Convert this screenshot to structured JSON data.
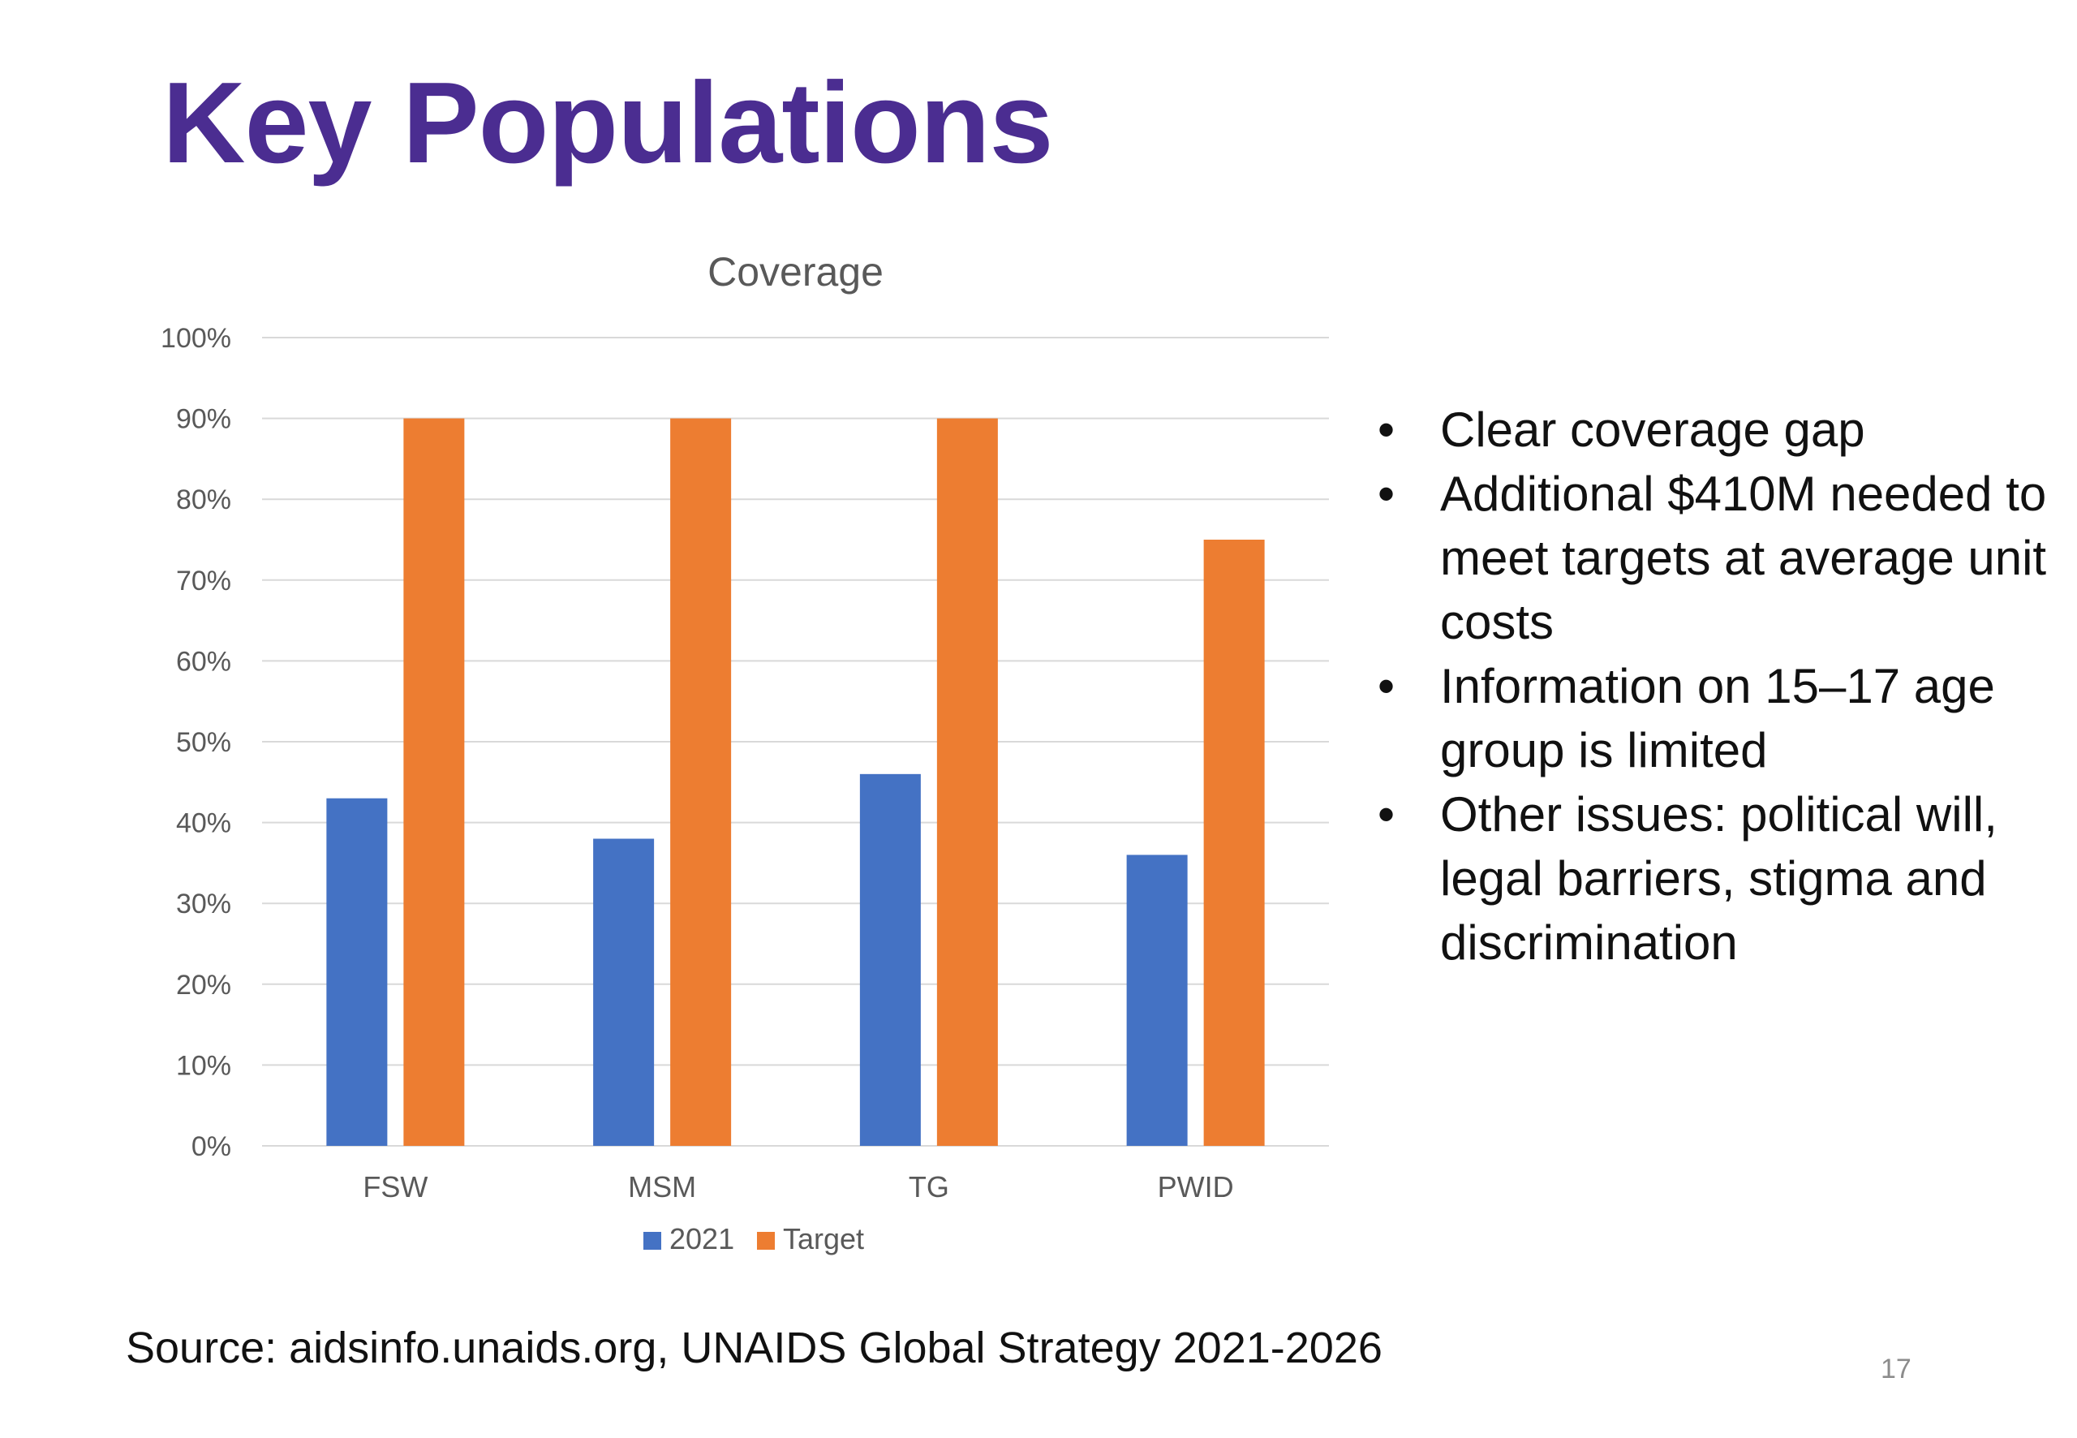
{
  "slide": {
    "title": "Key Populations",
    "bullets": [
      "Clear coverage gap",
      "Additional $410M needed to meet targets at average unit costs",
      "Information on 15–17 age group is limited",
      "Other issues: political will, legal barriers, stigma and discrimination"
    ],
    "source": "Source: aidsinfo.unaids.org, UNAIDS Global Strategy 2021-2026",
    "page_number": "17"
  },
  "colors": {
    "title": "#4b2d91",
    "series_2021": "#4472c4",
    "series_target": "#ed7d31",
    "gridline": "#d9d9d9",
    "tick_text": "#595959"
  },
  "chart_data": {
    "type": "bar",
    "title": "Coverage",
    "categories": [
      "FSW",
      "MSM",
      "TG",
      "PWID"
    ],
    "series": [
      {
        "name": "2021",
        "color": "#4472c4",
        "values": [
          43,
          38,
          46,
          36
        ]
      },
      {
        "name": "Target",
        "color": "#ed7d31",
        "values": [
          90,
          90,
          90,
          75
        ]
      }
    ],
    "ylim": [
      0,
      100
    ],
    "yticks": [
      "0%",
      "10%",
      "20%",
      "30%",
      "40%",
      "50%",
      "60%",
      "70%",
      "80%",
      "90%",
      "100%"
    ],
    "grid": true,
    "legend": "bottom",
    "xlabel": "",
    "ylabel": ""
  }
}
